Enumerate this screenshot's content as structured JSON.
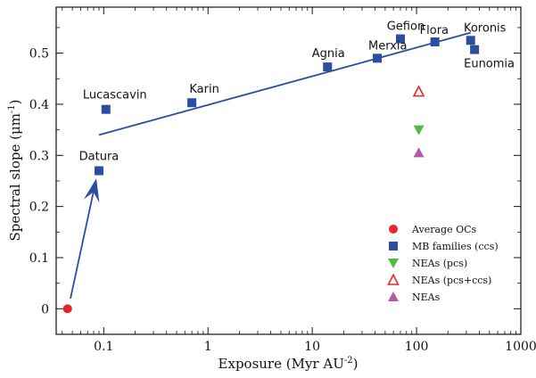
{
  "chart_data": {
    "type": "scatter",
    "xlabel": "Exposure (Myr AU",
    "xlabel_sup": "-2",
    "xlabel_close": ")",
    "ylabel": "Spectral slope (μm",
    "ylabel_sup": "-1",
    "ylabel_close": ")",
    "x_scale": "log",
    "xlim": [
      0.035,
      1000
    ],
    "ylim": [
      -0.05,
      0.59
    ],
    "x_ticks": [
      {
        "value": 0.1,
        "label": "0.1"
      },
      {
        "value": 1,
        "label": "1"
      },
      {
        "value": 10,
        "label": "10"
      },
      {
        "value": 100,
        "label": "100"
      },
      {
        "value": 1000,
        "label": "1000"
      }
    ],
    "y_ticks": [
      {
        "value": 0,
        "label": "0"
      },
      {
        "value": 0.1,
        "label": "0.1"
      },
      {
        "value": 0.2,
        "label": "0.2"
      },
      {
        "value": 0.3,
        "label": "0.3"
      },
      {
        "value": 0.4,
        "label": "0.4"
      },
      {
        "value": 0.5,
        "label": "0.5"
      }
    ],
    "grid": false,
    "legend_position": "bottom-right",
    "colors": {
      "blue": "#2b4ea0",
      "red": "#e8252a",
      "green": "#52b847",
      "purple": "#b45aa9"
    },
    "series": [
      {
        "name": "Average OCs",
        "marker": "circle",
        "color": "#e8252a",
        "points": [
          {
            "x": 0.045,
            "y": 0.0
          }
        ]
      },
      {
        "name": "MB families (ccs)",
        "marker": "square",
        "color": "#2b4ea0",
        "points": [
          {
            "x": 0.09,
            "y": 0.27,
            "label": "Datura"
          },
          {
            "x": 0.105,
            "y": 0.39,
            "label": "Lucascavin"
          },
          {
            "x": 0.7,
            "y": 0.403,
            "label": "Karin"
          },
          {
            "x": 14,
            "y": 0.473,
            "label": "Agnia"
          },
          {
            "x": 42,
            "y": 0.49,
            "label": "Merxia"
          },
          {
            "x": 70,
            "y": 0.528,
            "label": "Gefion"
          },
          {
            "x": 150,
            "y": 0.522,
            "label": "Flora"
          },
          {
            "x": 330,
            "y": 0.525,
            "label": "Koronis"
          },
          {
            "x": 360,
            "y": 0.507,
            "label": "Eunomia"
          }
        ]
      },
      {
        "name": "NEAs (pcs)",
        "marker": "triangle-down",
        "color": "#52b847",
        "points": [
          {
            "x": 105,
            "y": 0.35
          }
        ]
      },
      {
        "name": "NEAs (pcs+ccs)",
        "marker": "triangle-up-open",
        "color": "#e8252a",
        "points": [
          {
            "x": 105,
            "y": 0.425
          }
        ]
      },
      {
        "name": "NEAs",
        "marker": "triangle-up",
        "color": "#b45aa9",
        "points": [
          {
            "x": 105,
            "y": 0.305
          }
        ]
      }
    ],
    "fit_line": {
      "x": [
        0.09,
        330
      ],
      "y": [
        0.34,
        0.54
      ]
    },
    "arrow": {
      "from": {
        "x": 0.048,
        "y": 0.02
      },
      "to": {
        "x": 0.085,
        "y": 0.255
      }
    }
  }
}
